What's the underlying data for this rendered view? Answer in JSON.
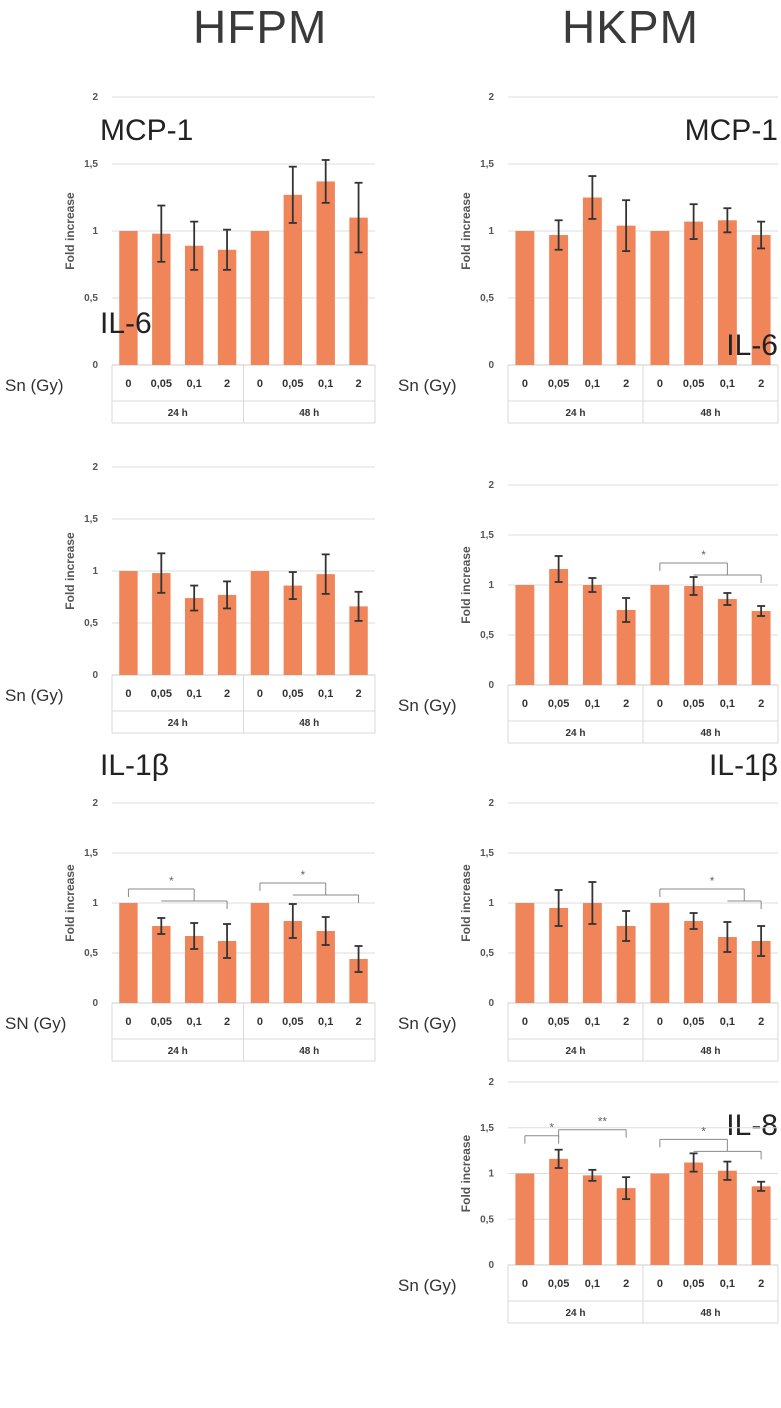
{
  "columns": {
    "left": "HFPM",
    "right": "HKPM"
  },
  "chart_data": [
    {
      "type": "bar",
      "column": "HFPM",
      "marker": "MCP-1",
      "ylabel": "Fold increase",
      "xprefix": "Sn (Gy)",
      "categories": [
        "0",
        "0,05",
        "0,1",
        "2",
        "0",
        "0,05",
        "0,1",
        "2"
      ],
      "groups": [
        "24 h",
        "48 h"
      ],
      "ylim": [
        0,
        2
      ],
      "yticks": [
        "0",
        "0,5",
        "1",
        "1,5",
        "2"
      ],
      "values": [
        1.0,
        0.98,
        0.89,
        0.86,
        1.0,
        1.27,
        1.37,
        1.1
      ],
      "errors": [
        0,
        0.21,
        0.18,
        0.15,
        0,
        0.21,
        0.16,
        0.26
      ],
      "significance": [],
      "color": "#f0855a",
      "grid": true
    },
    {
      "type": "bar",
      "column": "HKPM",
      "marker": "MCP-1",
      "ylabel": "Fold increase",
      "xprefix": "Sn (Gy)",
      "categories": [
        "0",
        "0,05",
        "0,1",
        "2",
        "0",
        "0,05",
        "0,1",
        "2"
      ],
      "groups": [
        "24 h",
        "48 h"
      ],
      "ylim": [
        0,
        2
      ],
      "yticks": [
        "0",
        "0,5",
        "1",
        "1,5",
        "2"
      ],
      "values": [
        1.0,
        0.97,
        1.25,
        1.04,
        1.0,
        1.07,
        1.08,
        0.97
      ],
      "errors": [
        0,
        0.11,
        0.16,
        0.19,
        0,
        0.13,
        0.09,
        0.1
      ],
      "significance": [],
      "color": "#f0855a",
      "grid": true
    },
    {
      "type": "bar",
      "column": "HFPM",
      "marker": "IL-6",
      "ylabel": "Fold increase",
      "xprefix": "Sn (Gy)",
      "categories": [
        "0",
        "0,05",
        "0,1",
        "2",
        "0",
        "0,05",
        "0,1",
        "2"
      ],
      "groups": [
        "24 h",
        "48 h"
      ],
      "ylim": [
        0,
        2
      ],
      "yticks": [
        "0",
        "0,5",
        "1",
        "1,5",
        "2"
      ],
      "values": [
        1.0,
        0.98,
        0.74,
        0.77,
        1.0,
        0.86,
        0.97,
        0.66
      ],
      "errors": [
        0,
        0.19,
        0.12,
        0.13,
        0,
        0.13,
        0.19,
        0.14
      ],
      "significance": [],
      "color": "#f0855a",
      "grid": true
    },
    {
      "type": "bar",
      "column": "HKPM",
      "marker": "IL-6",
      "ylabel": "Fold increase",
      "xprefix": "Sn (Gy)",
      "categories": [
        "0",
        "0,05",
        "0,1",
        "2",
        "0",
        "0,05",
        "0,1",
        "2"
      ],
      "groups": [
        "24 h",
        "48 h"
      ],
      "ylim": [
        0,
        2
      ],
      "yticks": [
        "0",
        "0,5",
        "1",
        "1,5",
        "2"
      ],
      "values": [
        1.0,
        1.16,
        1.0,
        0.75,
        1.0,
        0.99,
        0.86,
        0.74
      ],
      "errors": [
        0,
        0.13,
        0.07,
        0.12,
        0,
        0.09,
        0.06,
        0.05
      ],
      "significance": [
        {
          "from": 4,
          "to": [
            5,
            7
          ],
          "label": "*"
        }
      ],
      "color": "#f0855a",
      "grid": true
    },
    {
      "type": "bar",
      "column": "HFPM",
      "marker": "IL-1β",
      "ylabel": "Fold increase",
      "xprefix": "SN (Gy)",
      "categories": [
        "0",
        "0,05",
        "0,1",
        "2",
        "0",
        "0,05",
        "0,1",
        "2"
      ],
      "groups": [
        "24 h",
        "48 h"
      ],
      "ylim": [
        0,
        2
      ],
      "yticks": [
        "0",
        "0,5",
        "1",
        "1,5",
        "2"
      ],
      "values": [
        1.0,
        0.77,
        0.67,
        0.62,
        1.0,
        0.82,
        0.72,
        0.44
      ],
      "errors": [
        0,
        0.08,
        0.13,
        0.17,
        0,
        0.17,
        0.14,
        0.13
      ],
      "significance": [
        {
          "from": 0,
          "to": [
            1,
            3
          ],
          "label": "*"
        },
        {
          "from": 4,
          "to": [
            5,
            7
          ],
          "label": "*"
        }
      ],
      "color": "#f0855a",
      "grid": true
    },
    {
      "type": "bar",
      "column": "HKPM",
      "marker": "IL-1β",
      "ylabel": "Fold increase",
      "xprefix": "Sn (Gy)",
      "categories": [
        "0",
        "0,05",
        "0,1",
        "2",
        "0",
        "0,05",
        "0,1",
        "2"
      ],
      "groups": [
        "24 h",
        "48 h"
      ],
      "ylim": [
        0,
        2
      ],
      "yticks": [
        "0",
        "0,5",
        "1",
        "1,5",
        "2"
      ],
      "values": [
        1.0,
        0.95,
        1.0,
        0.77,
        1.0,
        0.82,
        0.66,
        0.62
      ],
      "errors": [
        0,
        0.18,
        0.21,
        0.15,
        0,
        0.08,
        0.15,
        0.15
      ],
      "significance": [
        {
          "from": 4,
          "to": [
            6,
            7
          ],
          "label": "*"
        }
      ],
      "color": "#f0855a",
      "grid": true
    },
    {
      "type": "bar",
      "column": "HKPM",
      "marker": "IL-8",
      "ylabel": "Fold increase",
      "xprefix": "Sn (Gy)",
      "categories": [
        "0",
        "0,05",
        "0,1",
        "2",
        "0",
        "0,05",
        "0,1",
        "2"
      ],
      "groups": [
        "24 h",
        "48 h"
      ],
      "ylim": [
        0,
        2
      ],
      "yticks": [
        "0",
        "0,5",
        "1",
        "1,5",
        "2"
      ],
      "values": [
        1.0,
        1.16,
        0.98,
        0.84,
        1.0,
        1.12,
        1.03,
        0.86
      ],
      "errors": [
        0,
        0.1,
        0.06,
        0.12,
        0,
        0.1,
        0.1,
        0.05
      ],
      "significance": [
        {
          "from": 0,
          "to": [
            1,
            1
          ],
          "label": "*"
        },
        {
          "from": 1,
          "to": [
            3,
            3
          ],
          "label": "**"
        },
        {
          "from": 4,
          "to": [
            5,
            7
          ],
          "label": "*"
        }
      ],
      "color": "#f0855a",
      "grid": true
    }
  ]
}
